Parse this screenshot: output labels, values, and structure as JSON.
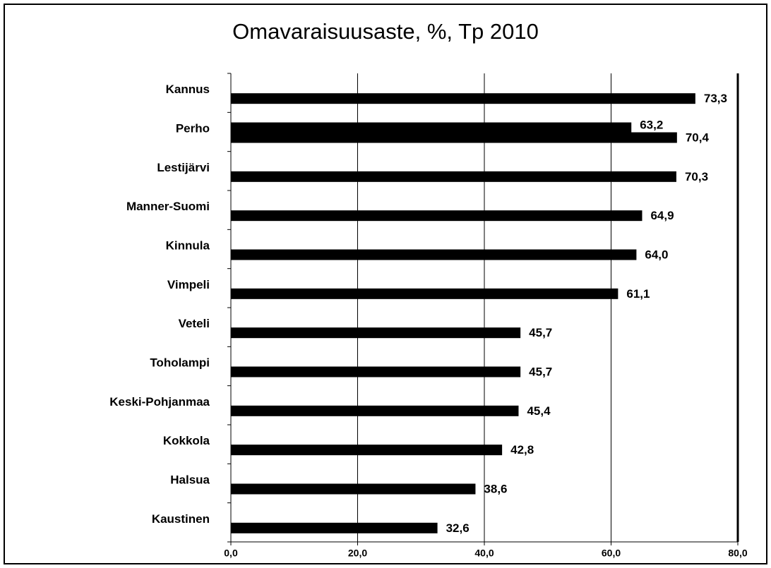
{
  "chart_data": {
    "type": "bar",
    "orientation": "horizontal",
    "title": "Omavaraisuusaste, %, Tp 2010",
    "categories": [
      "Kannus",
      "Perho",
      "Lestijärvi",
      "Manner-Suomi",
      "Kinnula",
      "Vimpeli",
      "Veteli",
      "Toholampi",
      "Keski-Pohjanmaa",
      "Kokkola",
      "Halsua",
      "Kaustinen"
    ],
    "series": [
      {
        "color": "#000000",
        "values": [
          73.3,
          70.4,
          70.3,
          64.9,
          64.0,
          61.1,
          45.7,
          45.7,
          45.4,
          42.8,
          38.6,
          32.6
        ],
        "value_labels": [
          "73,3",
          "70,4",
          "70,3",
          "64,9",
          "64,0",
          "61,1",
          "45,7",
          "45,7",
          "45,4",
          "42,8",
          "38,6",
          "32,6"
        ]
      },
      {
        "color": "#000000",
        "values": [
          null,
          63.2,
          null,
          null,
          null,
          null,
          null,
          null,
          null,
          null,
          null,
          null
        ],
        "value_labels": [
          null,
          "63,2",
          null,
          null,
          null,
          null,
          null,
          null,
          null,
          null,
          null,
          null
        ]
      }
    ],
    "xlim": [
      0,
      80
    ],
    "xticks": [
      {
        "value": 0,
        "label": "0,0"
      },
      {
        "value": 20,
        "label": "20,0"
      },
      {
        "value": 40,
        "label": "40,0"
      },
      {
        "value": 60,
        "label": "60,0"
      },
      {
        "value": 80,
        "label": "80,0"
      }
    ],
    "grid": true
  }
}
